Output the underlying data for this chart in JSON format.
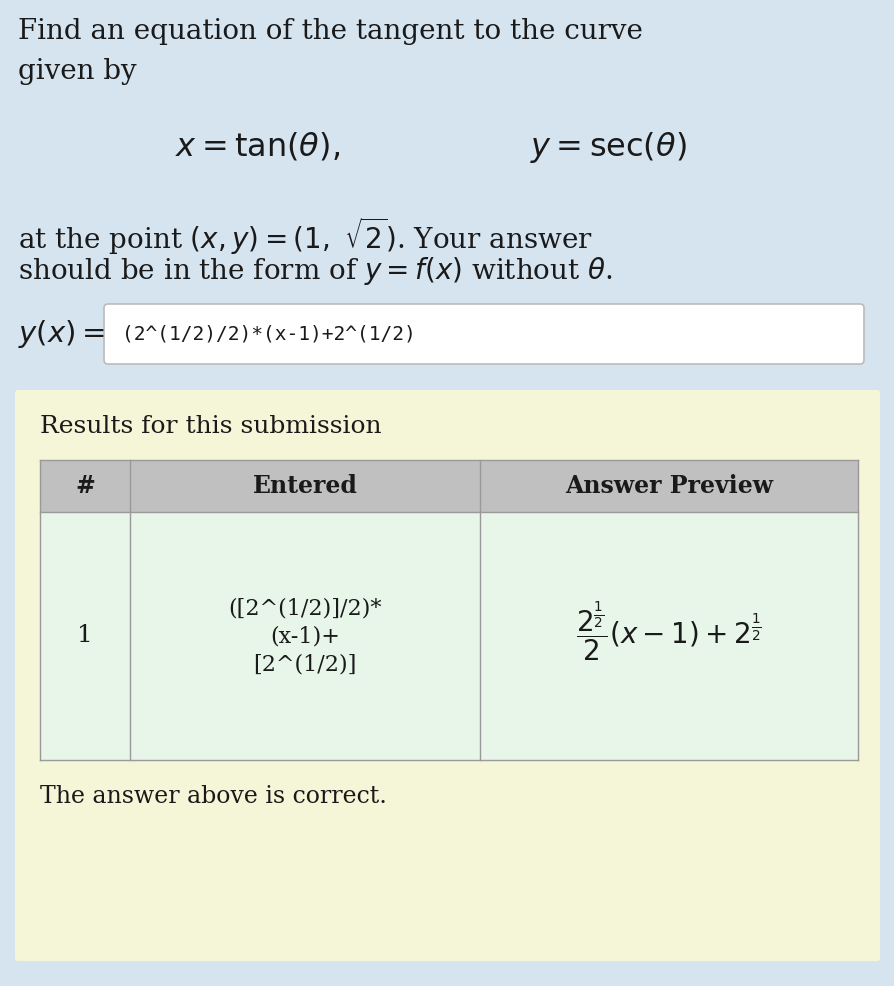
{
  "bg_color": "#d6e4f0",
  "results_bg_color": "#f5f5d8",
  "table_header_bg": "#c0c0c0",
  "table_row1_bg": "#e8f5e9",
  "table_border_color": "#999999",
  "input_box_bg": "#ffffff",
  "input_box_border": "#bbbbbb",
  "main_text_color": "#1a1a1a",
  "title_line1": "Find an equation of the tangent to the curve",
  "title_line2": "given by",
  "input_content": "(2^(1/2)/2)*(x-1)+2^(1/2)",
  "results_title": "Results for this submission",
  "col_hash": "#",
  "col_entered": "Entered",
  "col_preview": "Answer Preview",
  "row_num": "1",
  "row_entered_line1": "([2^(1/2)]/2)*",
  "row_entered_line2": "(x-1)+",
  "row_entered_line3": "[2^(1/2)]",
  "footer": "The answer above is correct.",
  "font_size_main": 19,
  "font_size_eq": 23
}
